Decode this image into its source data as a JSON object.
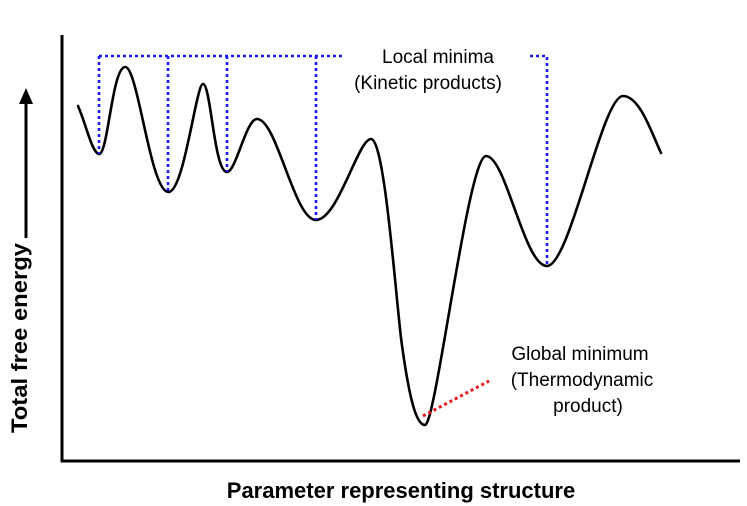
{
  "axes": {
    "x_label": "Parameter representing structure",
    "y_label": "Total free energy"
  },
  "annotations": {
    "local_minima": {
      "line1": "Local minima",
      "line2": "(Kinetic products)"
    },
    "global_minimum": {
      "line1": "Global minimum",
      "line2": "(Thermodynamic",
      "line3": "product)"
    }
  },
  "colors": {
    "curve": "#000000",
    "local_minima_markers": "#1a1aff",
    "global_minimum_marker": "#e8141b"
  }
}
